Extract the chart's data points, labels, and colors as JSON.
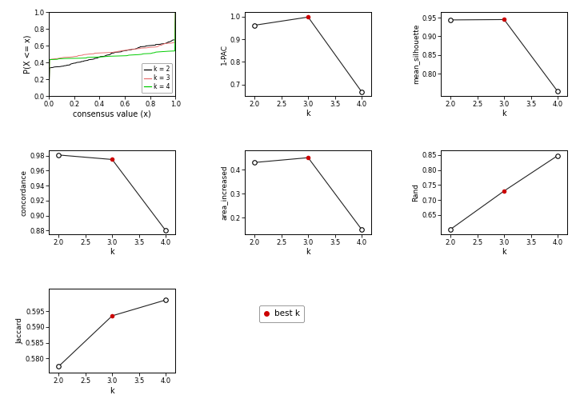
{
  "ecdf_xlabel": "consensus value (x)",
  "ecdf_ylabel": "P(X <= x)",
  "ecdf_ylim": [
    0.0,
    1.0
  ],
  "ecdf_xlim": [
    0.0,
    1.0
  ],
  "legend_labels": [
    "k = 2",
    "k = 3",
    "k = 4"
  ],
  "legend_colors": [
    "#000000",
    "#E87070",
    "#00CC00"
  ],
  "pac": {
    "k": [
      2,
      3,
      4
    ],
    "y": [
      0.962,
      0.998,
      0.668
    ],
    "best_k": 3,
    "ylabel": "1-PAC",
    "ylim": [
      0.65,
      1.02
    ],
    "yticks": [
      0.7,
      0.8,
      0.9,
      1.0
    ]
  },
  "silhouette": {
    "k": [
      2,
      3,
      4
    ],
    "y": [
      0.944,
      0.945,
      0.752
    ],
    "best_k": 3,
    "ylabel": "mean_silhouette",
    "ylim": [
      0.74,
      0.965
    ],
    "yticks": [
      0.8,
      0.85,
      0.9,
      0.95
    ]
  },
  "concordance": {
    "k": [
      2,
      3,
      4
    ],
    "y": [
      0.981,
      0.975,
      0.88
    ],
    "best_k": 3,
    "ylabel": "concordance",
    "ylim": [
      0.875,
      0.987
    ],
    "yticks": [
      0.88,
      0.9,
      0.92,
      0.94,
      0.96,
      0.98
    ]
  },
  "area_increased": {
    "k": [
      2,
      3,
      4
    ],
    "y": [
      0.43,
      0.45,
      0.15
    ],
    "best_k": 3,
    "ylabel": "area_increased",
    "ylim": [
      0.13,
      0.48
    ],
    "yticks": [
      0.2,
      0.3,
      0.4
    ]
  },
  "rand": {
    "k": [
      2,
      3,
      4
    ],
    "y": [
      0.602,
      0.73,
      0.848
    ],
    "best_k": 3,
    "ylabel": "Rand",
    "ylim": [
      0.585,
      0.865
    ],
    "yticks": [
      0.65,
      0.7,
      0.75,
      0.8,
      0.85
    ]
  },
  "jaccard": {
    "k": [
      2,
      3,
      4
    ],
    "y": [
      0.5775,
      0.5935,
      0.5985
    ],
    "best_k": 3,
    "ylabel": "Jaccard",
    "ylim": [
      0.5755,
      0.602
    ],
    "yticks": [
      0.58,
      0.585,
      0.59,
      0.595
    ]
  },
  "k_xlabel": "k",
  "open_circle_color": "#000000",
  "best_k_color": "#CC0000",
  "line_color": "#222222",
  "background": "#FFFFFF"
}
